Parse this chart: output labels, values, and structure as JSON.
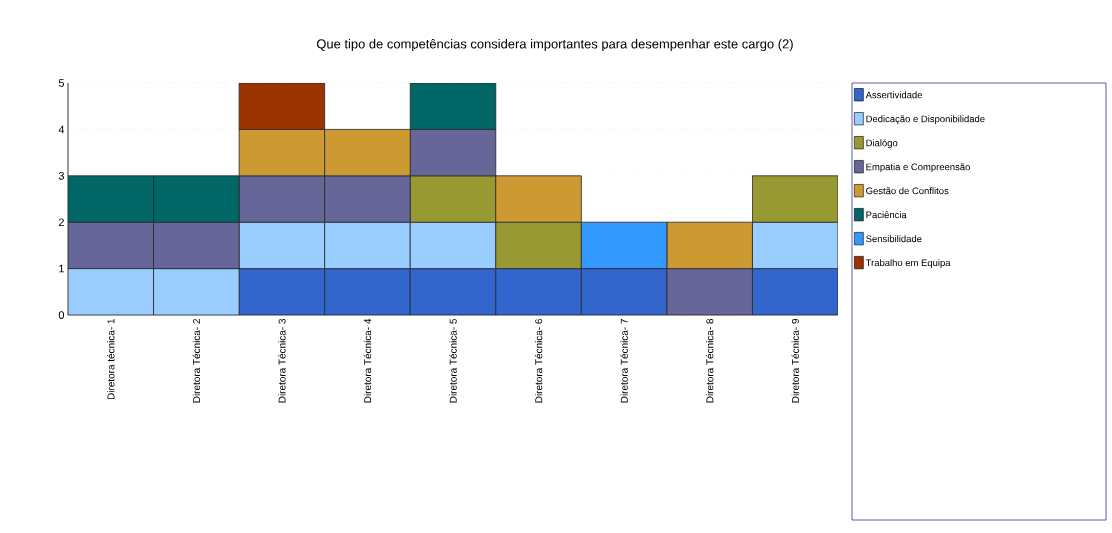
{
  "chart_data": {
    "type": "bar",
    "stacked": true,
    "title": "Que tipo de competências considera importantes para desempenhar este cargo (2)",
    "categories": [
      "Diretora técnica- 1",
      "Diretora Técnica- 2",
      "Diretora Técnica- 3",
      "Diretora Técnica- 4",
      "Diretora Técnica- 5",
      "Diretora Técnica- 6",
      "Diretora Técnica- 7",
      "Diretora Técnica- 8",
      "Diretora Técnica- 9"
    ],
    "series": [
      {
        "name": "Assertividade",
        "color": "#3366cc",
        "values": [
          null,
          null,
          1,
          1,
          1,
          1,
          1,
          null,
          1
        ]
      },
      {
        "name": "Dedicação e Disponibilidade",
        "color": "#99ccff",
        "values": [
          1,
          1,
          1,
          1,
          1,
          null,
          null,
          null,
          1
        ]
      },
      {
        "name": "Dialógo",
        "color": "#999933",
        "values": [
          null,
          null,
          null,
          null,
          1,
          1,
          null,
          null,
          1
        ]
      },
      {
        "name": "Empatia e Compreensão",
        "color": "#666699",
        "values": [
          1,
          1,
          1,
          1,
          1,
          null,
          null,
          1,
          null
        ]
      },
      {
        "name": "Gestão de Conflitos",
        "color": "#cc9933",
        "values": [
          null,
          null,
          1,
          1,
          null,
          1,
          null,
          1,
          null
        ]
      },
      {
        "name": "Paciência",
        "color": "#006666",
        "values": [
          1,
          1,
          null,
          null,
          1,
          null,
          null,
          null,
          null
        ]
      },
      {
        "name": "Sensibilidade",
        "color": "#3399ff",
        "values": [
          null,
          null,
          null,
          null,
          null,
          null,
          1,
          null,
          null
        ]
      },
      {
        "name": "Trabalho em Equipa",
        "color": "#993300",
        "values": [
          null,
          null,
          1,
          null,
          null,
          null,
          null,
          null,
          null
        ]
      }
    ],
    "ylim": [
      0,
      5
    ],
    "yticks": [
      0,
      1,
      2,
      3,
      4,
      5
    ],
    "grid": "y",
    "legend": "right"
  }
}
